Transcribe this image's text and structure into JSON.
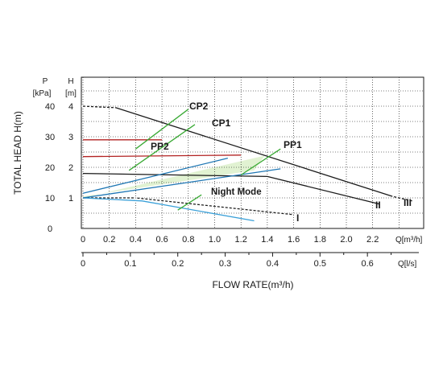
{
  "chart_data": {
    "type": "line",
    "xlabel": "FLOW RATE(m³/h)",
    "ylabel": "TOTAL HEAD H(m)",
    "axes": {
      "head_title": "H",
      "head_unit": "[m]",
      "pressure_title": "P",
      "pressure_unit": "[kPa]",
      "flow_m3h_label": "Q[m³/h]",
      "flow_ls_label": "Q[l/s]",
      "x_m3h_ticks": [
        "0",
        "0.2",
        "0.4",
        "0.6",
        "0.8",
        "1.0",
        "1.2",
        "1.4",
        "1.6",
        "1.8",
        "2.0",
        "2.2"
      ],
      "x_ls_ticks": [
        "0",
        "0.1",
        "0.2",
        "0.3",
        "0.4",
        "0.5",
        "0.6"
      ],
      "y_head_ticks": [
        "1",
        "2",
        "3",
        "4"
      ],
      "y_kpa_ticks": [
        "0",
        "10",
        "20",
        "30",
        "40"
      ],
      "xlim": [
        0,
        2.6
      ],
      "ylim": [
        0,
        4.5
      ],
      "grid": true
    },
    "series": [
      {
        "name": "III",
        "style": "dashed-black",
        "x": [
          0,
          0.25,
          2.35,
          2.5
        ],
        "y": [
          4.0,
          3.95,
          1.05,
          0.9
        ]
      },
      {
        "name": "II",
        "style": "black",
        "x": [
          0,
          1.4,
          2.25
        ],
        "y": [
          1.8,
          1.7,
          0.8
        ]
      },
      {
        "name": "I",
        "style": "dashed-black",
        "x": [
          0,
          0.4,
          1.6
        ],
        "y": [
          1.0,
          1.0,
          0.45
        ]
      },
      {
        "name": "",
        "style": "blue",
        "x": [
          0,
          0.45,
          1.3
        ],
        "y": [
          1.0,
          0.9,
          0.25
        ]
      },
      {
        "name": "PP2",
        "style": "red",
        "x": [
          0,
          1.2
        ],
        "y": [
          2.35,
          2.4
        ]
      },
      {
        "name": "CP2",
        "style": "red",
        "x": [
          0,
          0.6
        ],
        "y": [
          2.9,
          2.9
        ]
      },
      {
        "name": "PP1",
        "style": "blue",
        "x": [
          0,
          1.5
        ],
        "y": [
          1.0,
          1.95
        ]
      },
      {
        "name": "CP1",
        "style": "blue",
        "x": [
          0,
          1.1
        ],
        "y": [
          1.15,
          2.3
        ]
      }
    ],
    "annotations": [
      {
        "text": "CP2",
        "x": 0.6,
        "y": 3.9
      },
      {
        "text": "CP1",
        "x": 0.75,
        "y": 3.5
      },
      {
        "text": "PP2",
        "x": 0.35,
        "y": 2.6
      },
      {
        "text": "PP1",
        "x": 1.5,
        "y": 2.7
      },
      {
        "text": "Night Mode",
        "x": 0.96,
        "y": 1.25
      },
      {
        "text": "I",
        "x": 1.65,
        "y": 0.4
      },
      {
        "text": "II",
        "x": 2.25,
        "y": 0.7
      },
      {
        "text": "III",
        "x": 2.45,
        "y": 0.75
      }
    ],
    "colors": {
      "black": "#1a1a1a",
      "red": "#b22222",
      "blue": "#1f77b4",
      "light_blue": "#3aa0d8",
      "green": "#3aaa35",
      "fill": "#d9efc7",
      "grid": "#000000"
    }
  }
}
